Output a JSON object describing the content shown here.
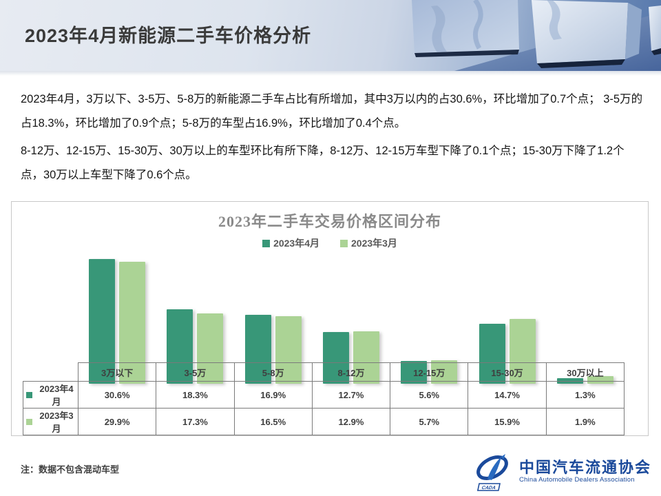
{
  "header": {
    "title": "2023年4月新能源二手车价格分析"
  },
  "body": {
    "paragraph1": "2023年4月，3万以下、3-5万、5-8万的新能源二手车占比有所增加，其中3万以内的占30.6%，环比增加了0.7个点；  3-5万的占18.3%，环比增加了0.9个点；5-8万的车型占16.9%，环比增加了0.4个点。",
    "paragraph2": "8-12万、12-15万、15-30万、30万以上的车型环比有所下降，8-12万、12-15万车型下降了0.1个点；15-30万下降了1.2个点，30万以上车型下降了0.6个点。"
  },
  "chart_data": {
    "type": "bar",
    "title": "2023年二手车交易价格区间分布",
    "categories": [
      "3万以下",
      "3-5万",
      "5-8万",
      "8-12万",
      "12-15万",
      "15-30万",
      "30万以上"
    ],
    "series": [
      {
        "name": "2023年4月",
        "color": "#389778",
        "values": [
          30.6,
          18.3,
          16.9,
          12.7,
          5.6,
          14.7,
          1.3
        ]
      },
      {
        "name": "2023年3月",
        "color": "#abd395",
        "values": [
          29.9,
          17.3,
          16.5,
          12.9,
          5.7,
          15.9,
          1.9
        ]
      }
    ],
    "xlabel": "",
    "ylabel": "",
    "ylim": [
      0,
      32
    ],
    "value_format": "percent",
    "legend_position": "top-center",
    "grid": false,
    "data_table_shown": true
  },
  "footer": {
    "note": "注：数据不包含混动车型",
    "logo_cn": "中国汽车流通协会",
    "logo_en": "China Automobile Dealers Association",
    "logo_abbr": "CADA"
  },
  "colors": {
    "series_april": "#389778",
    "series_march": "#abd395",
    "logo_blue": "#1b4a9b",
    "header_blue": "#5577ab"
  }
}
